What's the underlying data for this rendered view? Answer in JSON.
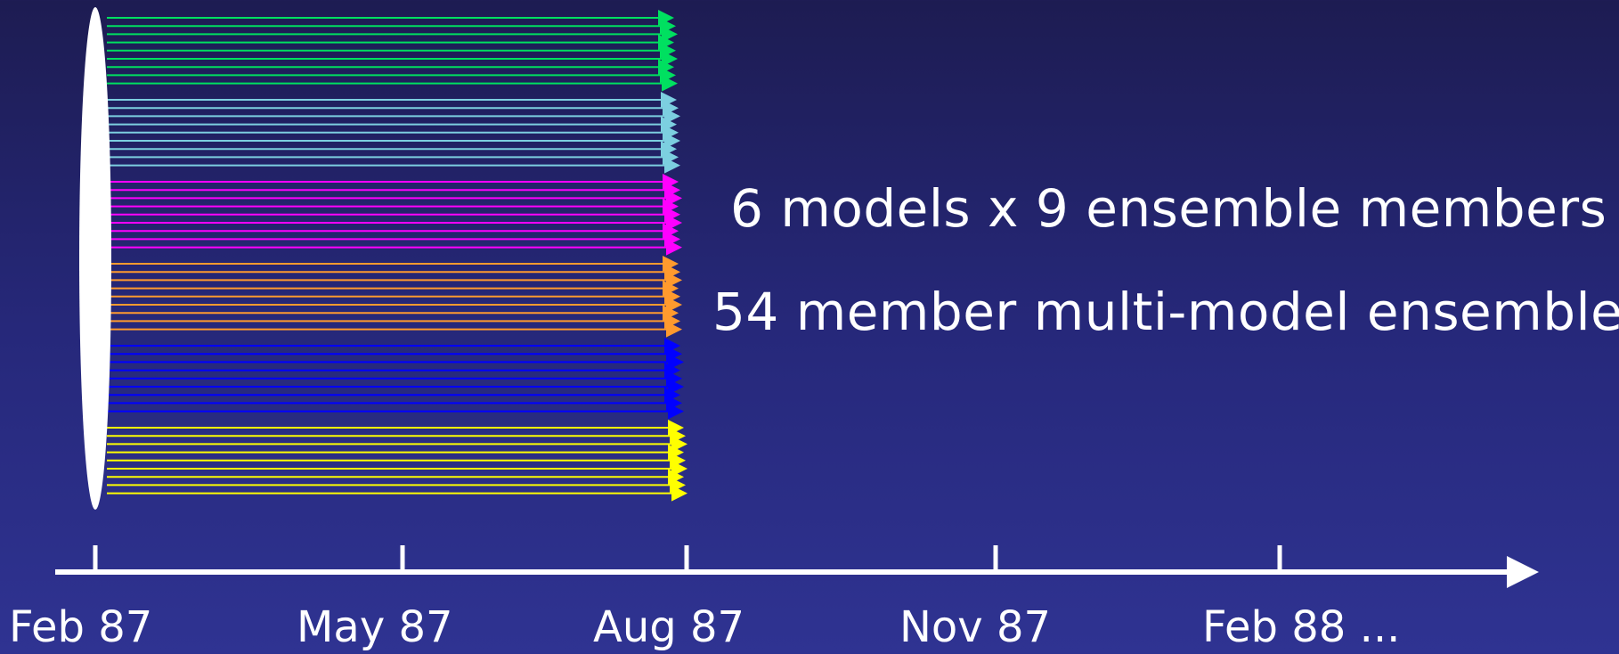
{
  "captions": [
    "6 models x 9 ensemble members",
    "54 member multi-model ensemble"
  ],
  "timeline": {
    "tick_labels": [
      "Feb 87",
      "May 87",
      "Aug 87",
      "Nov 87",
      "Feb 88 ..."
    ]
  },
  "ensemble": {
    "models": 6,
    "members_per_model": 9,
    "start": "Feb 87",
    "end": "Aug 87",
    "colors": [
      "#00e060",
      "#7ccfe0",
      "#ff00ff",
      "#ff9a2e",
      "#0000ff",
      "#ffff00"
    ]
  }
}
